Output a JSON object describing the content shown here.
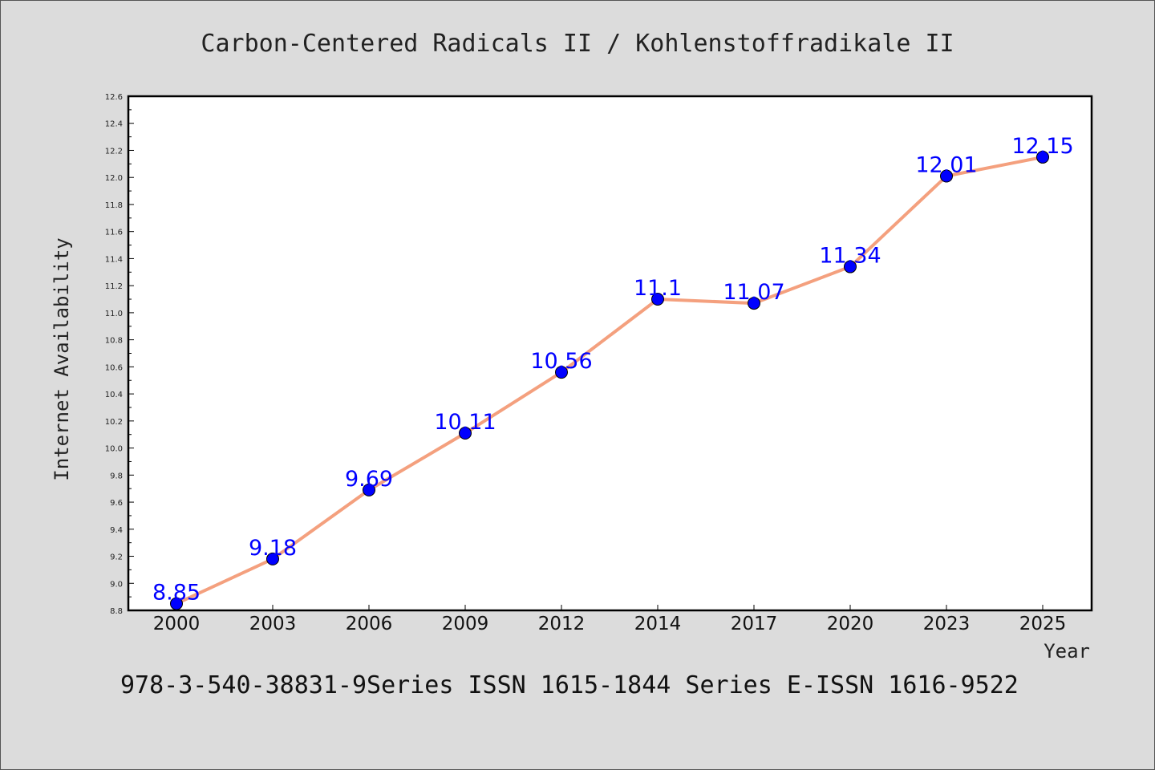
{
  "chart_data": {
    "type": "line",
    "title": "Carbon-Centered Radicals II / Kohlenstoffradikale II",
    "xlabel": "Year",
    "ylabel": "Internet Availability",
    "categories": [
      "2000",
      "2003",
      "2006",
      "2009",
      "2012",
      "2014",
      "2017",
      "2020",
      "2023",
      "2025"
    ],
    "series": [
      {
        "values": [
          8.85,
          9.18,
          9.69,
          10.11,
          10.56,
          11.1,
          11.07,
          11.34,
          12.01,
          12.15
        ],
        "labels": [
          "8.85",
          "9.18",
          "9.69",
          "10.11",
          "10.56",
          "11.1",
          "11.07",
          "11.34",
          "12.01",
          "12.15"
        ]
      }
    ],
    "ylim": [
      8.8,
      12.6
    ],
    "yticks": [
      "8.8",
      "9.0",
      "9.2",
      "9.4",
      "9.6",
      "9.8",
      "10.0",
      "10.2",
      "10.4",
      "10.6",
      "10.8",
      "11.0",
      "11.2",
      "11.4",
      "11.6",
      "11.8",
      "12.0",
      "12.2",
      "12.4",
      "12.6"
    ],
    "grid": false,
    "line_color": "#f4a07e",
    "marker_color": "#0000ff",
    "label_color": "#0000ff"
  },
  "footer": "978-3-540-38831-9Series ISSN 1615-1844 Series E-ISSN 1616-9522"
}
